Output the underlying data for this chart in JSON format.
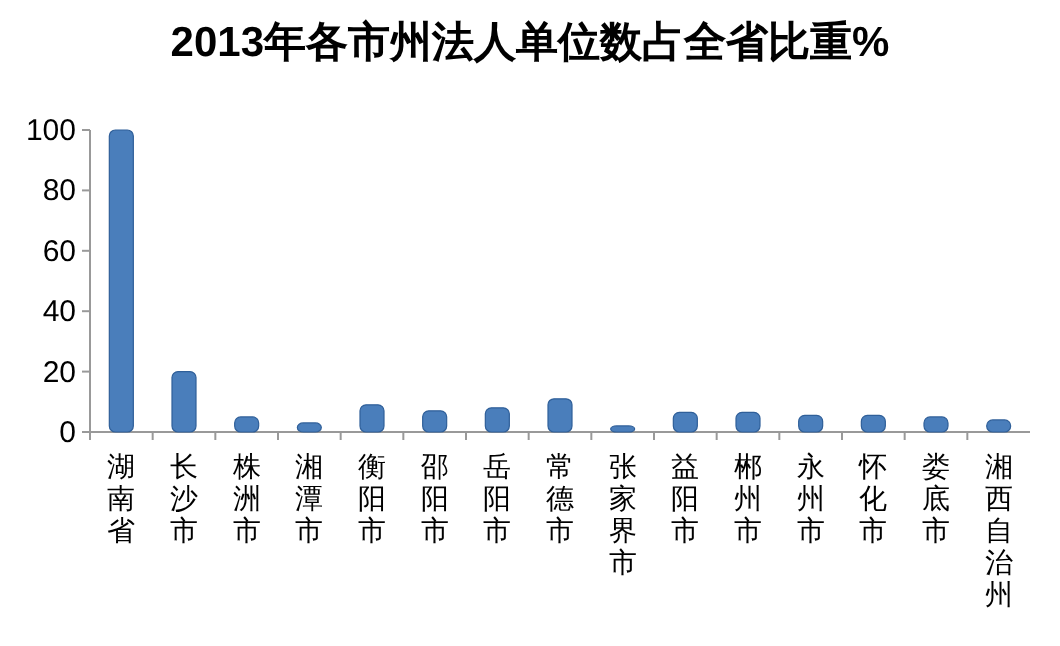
{
  "chart_data": {
    "type": "bar",
    "title": "2013年各市州法人单位数占全省比重%",
    "categories": [
      "湖南省",
      "长沙市",
      "株洲市",
      "湘潭市",
      "衡阳市",
      "邵阳市",
      "岳阳市",
      "常德市",
      "张家界市",
      "益阳市",
      "郴州市",
      "永州市",
      "怀化市",
      "娄底市",
      "湘西自治州"
    ],
    "values": [
      100,
      20,
      5,
      3,
      9,
      7,
      8,
      11,
      2,
      6.5,
      6.5,
      5.5,
      5.5,
      5,
      4
    ],
    "color": "#4a7ebb",
    "ylim": [
      0,
      100
    ],
    "yticks": [
      0,
      20,
      40,
      60,
      80,
      100
    ],
    "grid": false
  }
}
